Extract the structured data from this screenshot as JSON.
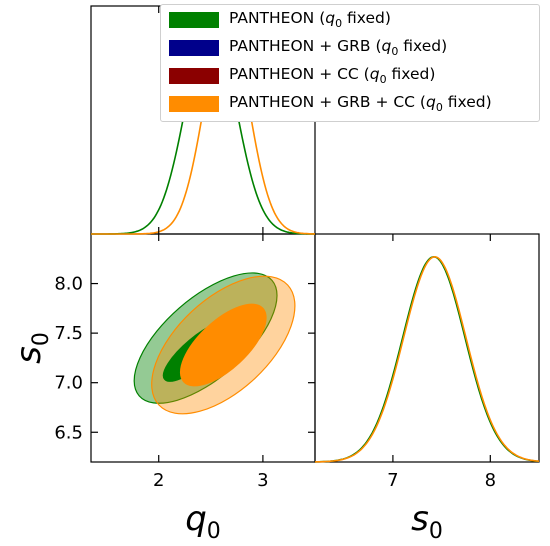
{
  "chart_data": [
    {
      "type": "line",
      "panel": "marginal q0",
      "xlabel": "q0",
      "xlim": [
        1.35,
        3.5
      ],
      "xticks": [
        2,
        3
      ],
      "series": [
        {
          "name": "PANTHEON (q0 fixed)",
          "color": "#008000",
          "mean": 2.5,
          "sigma": 0.24
        },
        {
          "name": "PANTHEON + GRB + CC (q0 fixed)",
          "color": "#ff8c00",
          "mean": 2.65,
          "sigma": 0.215
        }
      ]
    },
    {
      "type": "contour",
      "panel": "joint q0 - s0",
      "xlabel": "q0",
      "ylabel": "s0",
      "xlim": [
        1.35,
        3.5
      ],
      "ylim": [
        6.2,
        8.5
      ],
      "xticks": [
        2,
        3
      ],
      "yticks": [
        6.5,
        7.0,
        7.5,
        8.0
      ],
      "series": [
        {
          "name": "PANTHEON (q0 fixed)",
          "color": "#008000",
          "levels": [
            "68%",
            "95%"
          ]
        },
        {
          "name": "PANTHEON + GRB + CC (q0 fixed)",
          "color": "#ff8c00",
          "levels": [
            "68%",
            "95%"
          ]
        }
      ]
    },
    {
      "type": "line",
      "panel": "marginal s0",
      "xlabel": "s0",
      "xlim": [
        6.2,
        8.5
      ],
      "xticks": [
        7,
        8
      ],
      "series": [
        {
          "name": "PANTHEON (q0 fixed)",
          "color": "#008000",
          "mean": 7.42,
          "sigma": 0.32
        },
        {
          "name": "PANTHEON + GRB + CC (q0 fixed)",
          "color": "#ff8c00",
          "mean": 7.43,
          "sigma": 0.32
        }
      ]
    }
  ],
  "axis_labels": {
    "q0": {
      "base": "q",
      "sub": "0"
    },
    "s0": {
      "base": "s",
      "sub": "0"
    }
  },
  "tick_labels": {
    "q0": [
      "2",
      "3"
    ],
    "s0_y": [
      "6.5",
      "7.0",
      "7.5",
      "8.0"
    ],
    "s0_x": [
      "7",
      "8"
    ]
  },
  "legend": [
    {
      "base": "PANTHEON (",
      "sub": "0",
      "tail": " fixed)",
      "color": "#008000"
    },
    {
      "base": "PANTHEON + GRB (",
      "sub": "0",
      "tail": " fixed)",
      "color": "#00008b"
    },
    {
      "base": "PANTHEON + CC (",
      "sub": "0",
      "tail": " fixed)",
      "color": "#8b0000"
    },
    {
      "base": "PANTHEON + GRB + CC (",
      "sub": "0",
      "tail": " fixed)",
      "color": "#ff8c00"
    }
  ]
}
